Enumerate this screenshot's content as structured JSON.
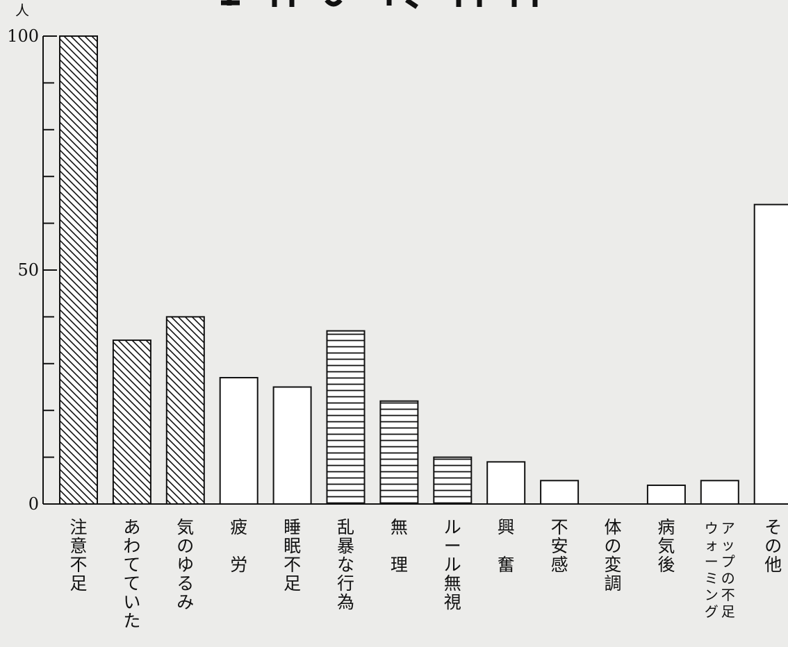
{
  "chart_data": {
    "type": "bar",
    "unit_label": "人",
    "title": "",
    "xlabel": "",
    "ylabel": "",
    "ylim": [
      0,
      100
    ],
    "yticks": [
      "100",
      "50",
      "0"
    ],
    "grid": false,
    "categories": [
      "注意不足",
      "あわてていた",
      "気のゆるみ",
      "疲　労",
      "睡眠不足",
      "乱暴な行為",
      "無　理",
      "ルール無視",
      "興　奮",
      "不安感",
      "体の変調",
      "病気後",
      "ウォーミングアップの不足",
      "その他"
    ],
    "category_columns": [
      [
        "注意不足"
      ],
      [
        "あわてていた"
      ],
      [
        "気のゆるみ"
      ],
      [
        "疲　労"
      ],
      [
        "睡眠不足"
      ],
      [
        "乱暴な行為"
      ],
      [
        "無　理"
      ],
      [
        "ルール無視"
      ],
      [
        "興　奮"
      ],
      [
        "不安感"
      ],
      [
        "体の変調"
      ],
      [
        "病気後"
      ],
      [
        "ウォーミング",
        "アップの不足"
      ],
      [
        "その他"
      ]
    ],
    "values": [
      100,
      35,
      40,
      27,
      25,
      37,
      22,
      10,
      9,
      5,
      0,
      4,
      5,
      64
    ],
    "patterns": [
      "diagonal",
      "diagonal",
      "diagonal",
      "none",
      "none",
      "horizontal",
      "horizontal",
      "horizontal",
      "none",
      "none",
      "none",
      "none",
      "none",
      "none"
    ]
  },
  "colors": {
    "background": "#ececea",
    "ink": "#111111",
    "bar_fill": "#ffffff"
  }
}
